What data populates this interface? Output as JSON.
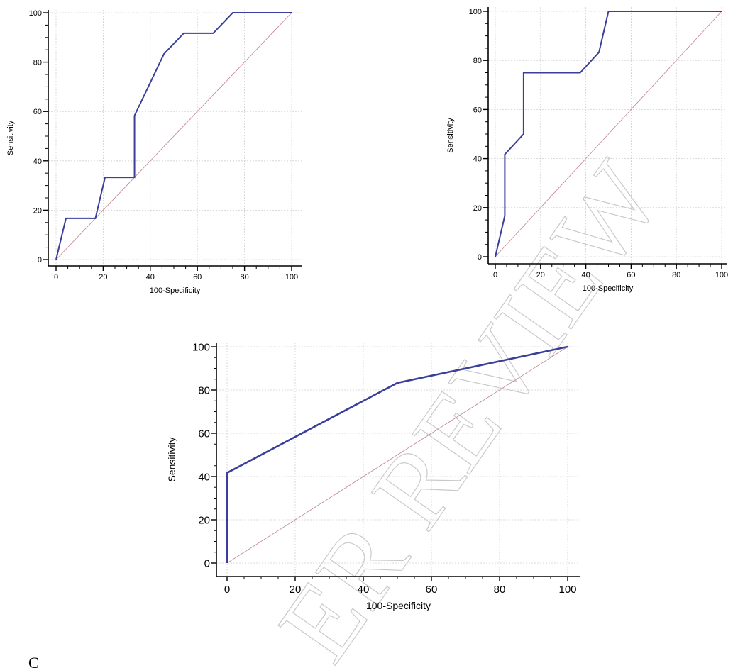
{
  "colors": {
    "roc_line": "#3a3f9a",
    "reference_line": "#c98a96",
    "grid": "#cfcfcf",
    "axis": "#000000",
    "watermark": "#c9c9c9"
  },
  "watermark": "ER REVIEW",
  "corner_mark": "C",
  "chart_data": [
    {
      "type": "line",
      "xlabel": "100-Specificity",
      "ylabel": "Sensitivity",
      "xlim": [
        0,
        100
      ],
      "ylim": [
        0,
        100
      ],
      "xticks": [
        "0",
        "20",
        "40",
        "60",
        "80",
        "100"
      ],
      "yticks": [
        "0",
        "20",
        "40",
        "60",
        "80",
        "100"
      ],
      "grid": true,
      "series": [
        {
          "x": [
            0,
            4.2,
            16.7,
            20.8,
            33.3,
            33.3,
            45.8,
            54.2,
            66.7,
            75,
            100
          ],
          "y": [
            0,
            16.7,
            16.7,
            33.3,
            33.3,
            58.3,
            83.3,
            91.7,
            91.7,
            100,
            100
          ]
        },
        {
          "x": [
            0,
            100
          ],
          "y": [
            0,
            100
          ]
        }
      ]
    },
    {
      "type": "line",
      "xlabel": "100-Specificity",
      "ylabel": "Sensitivity",
      "xlim": [
        0,
        100
      ],
      "ylim": [
        0,
        100
      ],
      "xticks": [
        "0",
        "20",
        "40",
        "60",
        "80",
        "100"
      ],
      "yticks": [
        "0",
        "20",
        "40",
        "60",
        "80",
        "100"
      ],
      "grid": true,
      "series": [
        {
          "x": [
            0,
            4.2,
            4.2,
            12.5,
            12.5,
            37.5,
            45.8,
            50,
            100
          ],
          "y": [
            0,
            16.7,
            41.7,
            50,
            75,
            75,
            83.3,
            100,
            100
          ]
        },
        {
          "x": [
            0,
            100
          ],
          "y": [
            0,
            100
          ]
        }
      ]
    },
    {
      "type": "line",
      "xlabel": "100-Specificity",
      "ylabel": "Sensitivity",
      "xlim": [
        0,
        100
      ],
      "ylim": [
        0,
        100
      ],
      "xticks": [
        "0",
        "20",
        "40",
        "60",
        "80",
        "100"
      ],
      "yticks": [
        "0",
        "20",
        "40",
        "60",
        "80",
        "100"
      ],
      "grid": true,
      "series": [
        {
          "x": [
            0,
            0,
            50,
            100
          ],
          "y": [
            0,
            41.7,
            83.3,
            100
          ]
        },
        {
          "x": [
            0,
            100
          ],
          "y": [
            0,
            100
          ]
        }
      ]
    }
  ]
}
